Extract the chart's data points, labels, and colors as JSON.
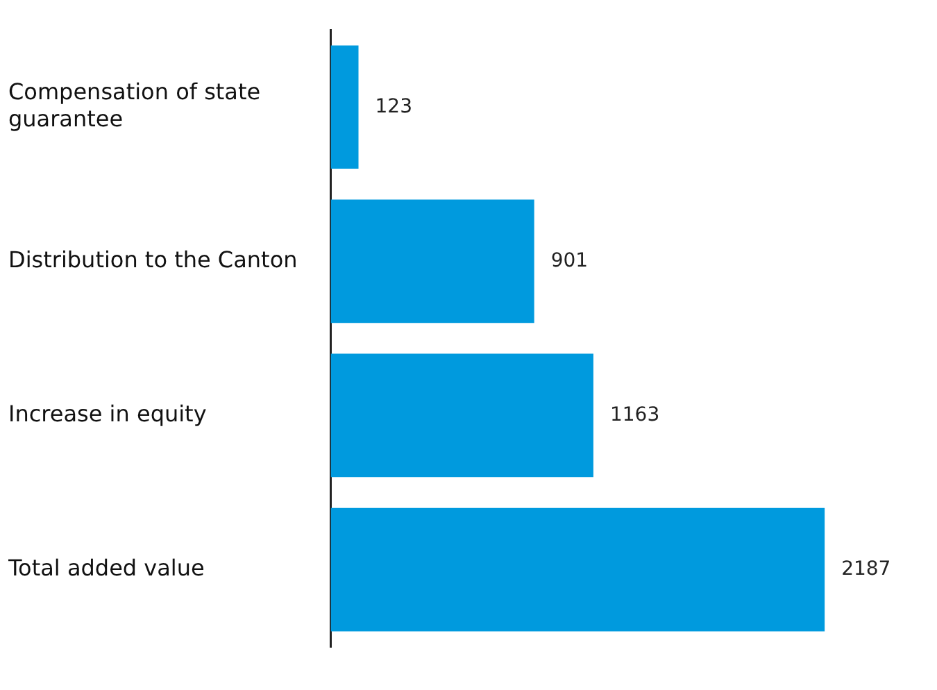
{
  "chart_data": {
    "type": "bar",
    "orientation": "horizontal",
    "categories": [
      "Compensation of state guarantee",
      "Distribution to the Canton",
      "Increase in equity",
      "Total added value"
    ],
    "values": [
      123,
      901,
      1163,
      2187
    ],
    "color": "#009ade",
    "data_labels": true,
    "grid": false,
    "legend": false
  }
}
